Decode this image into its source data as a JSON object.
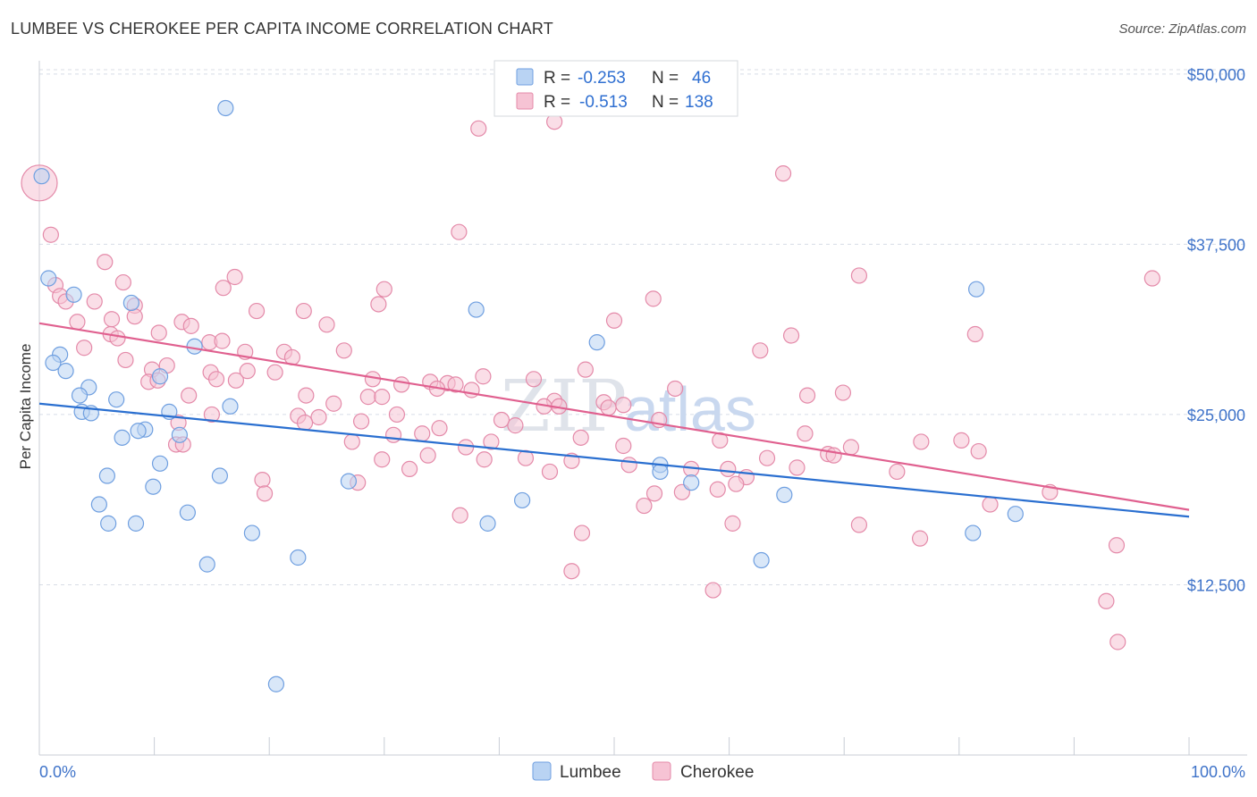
{
  "title": "LUMBEE VS CHEROKEE PER CAPITA INCOME CORRELATION CHART",
  "source": "Source: ZipAtlas.com",
  "watermark": {
    "zip": "ZIP",
    "atlas": "atlas"
  },
  "colors": {
    "lumbee_fill": "#b9d3f3",
    "lumbee_stroke": "#6f9fe0",
    "lumbee_line": "#2a6fd0",
    "cherokee_fill": "#f6c3d4",
    "cherokee_stroke": "#e48aa9",
    "cherokee_line": "#e0608f",
    "grid": "#d8dde6",
    "tick_text": "#3f73c9"
  },
  "legend": {
    "rows": [
      {
        "r_label": "R =",
        "r_value": "-0.253",
        "n_label": "N =",
        "n_value": "46"
      },
      {
        "r_label": "R =",
        "r_value": "-0.513",
        "n_label": "N =",
        "n_value": "138"
      }
    ]
  },
  "bottom_legend": {
    "lumbee": "Lumbee",
    "cherokee": "Cherokee"
  },
  "chart_data": {
    "type": "scatter",
    "title": "LUMBEE VS CHEROKEE PER CAPITA INCOME CORRELATION CHART",
    "xlabel": "",
    "ylabel": "Per Capita Income",
    "x_tick_labels": [
      "0.0%",
      "100.0%"
    ],
    "y_tick_labels": [
      "$12,500",
      "$25,000",
      "$37,500",
      "$50,000"
    ],
    "y_ticks": [
      12500,
      25000,
      37500,
      50000
    ],
    "xlim": [
      0,
      100
    ],
    "ylim": [
      0,
      51500
    ],
    "grid": true,
    "series": [
      {
        "name": "Lumbee",
        "r": -0.253,
        "n": 46,
        "trend": {
          "x": [
            0,
            100
          ],
          "y": [
            25800,
            17500
          ]
        },
        "points": [
          [
            0.2,
            42500
          ],
          [
            16.2,
            47500
          ],
          [
            0.8,
            35000
          ],
          [
            3,
            33800
          ],
          [
            8,
            33200
          ],
          [
            1.8,
            29400
          ],
          [
            1.2,
            28800
          ],
          [
            2.3,
            28200
          ],
          [
            10.5,
            27800
          ],
          [
            4.3,
            27000
          ],
          [
            3.5,
            26400
          ],
          [
            6.7,
            26100
          ],
          [
            3.7,
            25200
          ],
          [
            4.5,
            25100
          ],
          [
            11.3,
            25200
          ],
          [
            16.6,
            25600
          ],
          [
            9.2,
            23900
          ],
          [
            8.6,
            23800
          ],
          [
            12.2,
            23500
          ],
          [
            7.2,
            23300
          ],
          [
            10.5,
            21400
          ],
          [
            5.9,
            20500
          ],
          [
            15.7,
            20500
          ],
          [
            9.9,
            19700
          ],
          [
            5.2,
            18400
          ],
          [
            12.9,
            17800
          ],
          [
            6,
            17000
          ],
          [
            8.4,
            17000
          ],
          [
            18.5,
            16300
          ],
          [
            14.6,
            14000
          ],
          [
            22.5,
            14500
          ],
          [
            20.6,
            5200
          ],
          [
            26.9,
            20100
          ],
          [
            38,
            32700
          ],
          [
            39,
            17000
          ],
          [
            42,
            18700
          ],
          [
            48.5,
            30300
          ],
          [
            54,
            21300
          ],
          [
            54,
            20800
          ],
          [
            56.7,
            20000
          ],
          [
            64.8,
            19100
          ],
          [
            62.8,
            14300
          ],
          [
            81.5,
            34200
          ],
          [
            84.9,
            17700
          ],
          [
            81.2,
            16300
          ],
          [
            13.5,
            30000
          ]
        ]
      },
      {
        "name": "Cherokee",
        "r": -0.513,
        "n": 138,
        "trend": {
          "x": [
            0,
            100
          ],
          "y": [
            31700,
            18000
          ]
        },
        "points": [
          [
            0,
            42000
          ],
          [
            1,
            38200
          ],
          [
            36.5,
            38400
          ],
          [
            38.2,
            46000
          ],
          [
            44.8,
            46500
          ],
          [
            64.7,
            42700
          ],
          [
            5.7,
            36200
          ],
          [
            17,
            35100
          ],
          [
            7.3,
            34700
          ],
          [
            1.4,
            34500
          ],
          [
            16,
            34300
          ],
          [
            30,
            34200
          ],
          [
            1.8,
            33700
          ],
          [
            2.3,
            33300
          ],
          [
            4.8,
            33300
          ],
          [
            8.3,
            33000
          ],
          [
            29.5,
            33100
          ],
          [
            53.4,
            33500
          ],
          [
            96.8,
            35000
          ],
          [
            71.3,
            35200
          ],
          [
            18.9,
            32600
          ],
          [
            23,
            32600
          ],
          [
            8.3,
            32200
          ],
          [
            6.3,
            32000
          ],
          [
            3.3,
            31800
          ],
          [
            12.4,
            31800
          ],
          [
            13.2,
            31500
          ],
          [
            25,
            31600
          ],
          [
            50,
            31900
          ],
          [
            10.4,
            31000
          ],
          [
            6.2,
            30900
          ],
          [
            6.8,
            30600
          ],
          [
            65.4,
            30800
          ],
          [
            81.4,
            30900
          ],
          [
            3.9,
            29900
          ],
          [
            14.8,
            30300
          ],
          [
            15.9,
            30400
          ],
          [
            26.5,
            29700
          ],
          [
            62.7,
            29700
          ],
          [
            21.3,
            29600
          ],
          [
            22,
            29200
          ],
          [
            7.5,
            29000
          ],
          [
            17.9,
            29600
          ],
          [
            20.5,
            28100
          ],
          [
            11.1,
            28600
          ],
          [
            9.8,
            28300
          ],
          [
            14.9,
            28100
          ],
          [
            18.1,
            28200
          ],
          [
            29,
            27600
          ],
          [
            31.5,
            27200
          ],
          [
            34,
            27400
          ],
          [
            35.5,
            27300
          ],
          [
            36.2,
            27200
          ],
          [
            38.6,
            27800
          ],
          [
            43,
            27600
          ],
          [
            47.5,
            28300
          ],
          [
            55.3,
            26900
          ],
          [
            17.1,
            27500
          ],
          [
            15.4,
            27600
          ],
          [
            9.5,
            27400
          ],
          [
            10.3,
            27500
          ],
          [
            13,
            26400
          ],
          [
            23.2,
            26400
          ],
          [
            28.6,
            26300
          ],
          [
            29.8,
            26300
          ],
          [
            34.6,
            26900
          ],
          [
            37.6,
            26800
          ],
          [
            44.8,
            26000
          ],
          [
            49.1,
            25900
          ],
          [
            66.8,
            26400
          ],
          [
            69.9,
            26600
          ],
          [
            25.6,
            25800
          ],
          [
            43.9,
            25600
          ],
          [
            45.2,
            25600
          ],
          [
            50.8,
            25700
          ],
          [
            53.9,
            24600
          ],
          [
            31.1,
            25000
          ],
          [
            22.5,
            24900
          ],
          [
            28,
            24500
          ],
          [
            24.3,
            24800
          ],
          [
            34.8,
            24000
          ],
          [
            40.2,
            24600
          ],
          [
            41.4,
            24200
          ],
          [
            12.1,
            24400
          ],
          [
            23.1,
            24400
          ],
          [
            30.8,
            23500
          ],
          [
            33.3,
            23600
          ],
          [
            47.1,
            23300
          ],
          [
            59.2,
            23100
          ],
          [
            66.6,
            23600
          ],
          [
            76.7,
            23000
          ],
          [
            80.2,
            23100
          ],
          [
            39.3,
            23000
          ],
          [
            11.9,
            22800
          ],
          [
            27.2,
            23000
          ],
          [
            37.1,
            22600
          ],
          [
            50.8,
            22700
          ],
          [
            68.6,
            22100
          ],
          [
            69.1,
            22000
          ],
          [
            70.6,
            22600
          ],
          [
            81.7,
            22300
          ],
          [
            33.8,
            22000
          ],
          [
            42.3,
            21800
          ],
          [
            46.3,
            21600
          ],
          [
            38.7,
            21700
          ],
          [
            29.8,
            21700
          ],
          [
            32.2,
            21000
          ],
          [
            51.3,
            21300
          ],
          [
            56.7,
            21000
          ],
          [
            59.9,
            21000
          ],
          [
            63.3,
            21800
          ],
          [
            65.9,
            21100
          ],
          [
            74.6,
            20800
          ],
          [
            61.5,
            20400
          ],
          [
            60.6,
            19900
          ],
          [
            59,
            19500
          ],
          [
            55.9,
            19300
          ],
          [
            53.5,
            19200
          ],
          [
            27.7,
            20000
          ],
          [
            19.4,
            20200
          ],
          [
            44.4,
            20800
          ],
          [
            19.6,
            19200
          ],
          [
            87.9,
            19300
          ],
          [
            82.7,
            18400
          ],
          [
            52.6,
            18300
          ],
          [
            36.6,
            17600
          ],
          [
            60.3,
            17000
          ],
          [
            71.3,
            16900
          ],
          [
            47.2,
            16300
          ],
          [
            76.6,
            15900
          ],
          [
            93.7,
            15400
          ],
          [
            46.3,
            13500
          ],
          [
            58.6,
            12100
          ],
          [
            92.8,
            11300
          ],
          [
            93.8,
            8300
          ],
          [
            15,
            25000
          ],
          [
            12.5,
            22800
          ],
          [
            49.5,
            25500
          ]
        ]
      }
    ]
  }
}
